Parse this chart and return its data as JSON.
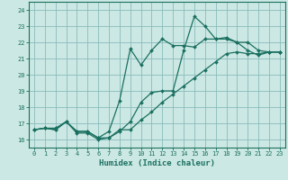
{
  "title": "",
  "xlabel": "Humidex (Indice chaleur)",
  "ylabel": "",
  "bg_color": "#cce8e4",
  "grid_color": "#88bbbb",
  "line_color": "#1a7060",
  "xlim": [
    -0.5,
    23.5
  ],
  "ylim": [
    15.5,
    24.5
  ],
  "xticks": [
    0,
    1,
    2,
    3,
    4,
    5,
    6,
    7,
    8,
    9,
    10,
    11,
    12,
    13,
    14,
    15,
    16,
    17,
    18,
    19,
    20,
    21,
    22,
    23
  ],
  "yticks": [
    16,
    17,
    18,
    19,
    20,
    21,
    22,
    23,
    24
  ],
  "line1_x": [
    0,
    1,
    2,
    3,
    4,
    5,
    6,
    7,
    8,
    9,
    10,
    11,
    12,
    13,
    14,
    15,
    16,
    17,
    18,
    19,
    20,
    21,
    22,
    23
  ],
  "line1_y": [
    16.6,
    16.7,
    16.6,
    17.1,
    16.4,
    16.4,
    16.0,
    16.1,
    16.5,
    17.1,
    18.3,
    18.9,
    19.0,
    19.0,
    21.5,
    23.6,
    23.0,
    22.2,
    22.2,
    22.0,
    21.5,
    21.2,
    21.4,
    21.4
  ],
  "line2_x": [
    0,
    1,
    2,
    3,
    4,
    5,
    6,
    7,
    8,
    9,
    10,
    11,
    12,
    13,
    14,
    15,
    16,
    17,
    18,
    19,
    20,
    21,
    22,
    23
  ],
  "line2_y": [
    16.6,
    16.7,
    16.6,
    17.1,
    16.5,
    16.5,
    16.1,
    16.5,
    18.4,
    21.6,
    20.6,
    21.5,
    22.2,
    21.8,
    21.8,
    21.7,
    22.2,
    22.2,
    22.3,
    22.0,
    22.0,
    21.5,
    21.4,
    21.4
  ],
  "line3_x": [
    0,
    1,
    2,
    3,
    4,
    5,
    6,
    7,
    8,
    9,
    10,
    11,
    12,
    13,
    14,
    15,
    16,
    17,
    18,
    19,
    20,
    21,
    22,
    23
  ],
  "line3_y": [
    16.6,
    16.7,
    16.7,
    17.1,
    16.5,
    16.5,
    16.1,
    16.1,
    16.6,
    16.6,
    17.2,
    17.7,
    18.3,
    18.8,
    19.3,
    19.8,
    20.3,
    20.8,
    21.3,
    21.4,
    21.3,
    21.3,
    21.4,
    21.4
  ],
  "tick_fontsize": 5.0,
  "xlabel_fontsize": 6.5,
  "marker_size": 2.0,
  "line_width": 0.9
}
